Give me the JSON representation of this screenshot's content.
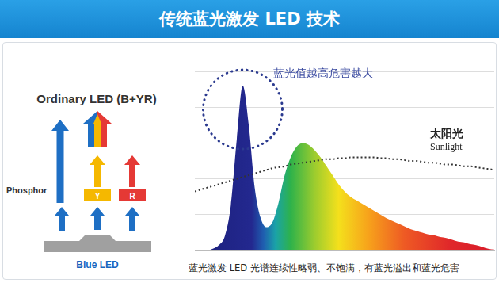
{
  "header": {
    "title": "传统蓝光激发 LED 技术"
  },
  "diagram": {
    "title": "Ordinary LED (B+YR)",
    "phosphor_label": "Phosphor",
    "phosphor_boxes": [
      "Y",
      "R"
    ],
    "source_label": "Blue LED"
  },
  "chart_data": {
    "type": "line",
    "x": [
      0,
      2,
      4,
      6,
      8,
      10,
      12,
      14,
      16,
      18,
      20,
      22,
      24,
      26,
      28,
      30,
      32,
      34,
      36,
      38,
      40,
      42,
      44,
      46,
      48,
      50,
      52,
      54,
      56,
      58,
      60,
      62,
      64,
      66,
      68,
      70,
      72,
      74,
      76,
      78,
      80,
      82,
      84,
      86,
      88,
      90,
      92,
      94,
      96,
      98,
      100
    ],
    "series": [
      {
        "type": "area",
        "color": "spectrum",
        "marker": "none",
        "values": [
          0,
          0,
          0,
          1,
          3,
          8,
          25,
          62,
          92,
          70,
          35,
          18,
          13,
          16,
          27,
          42,
          52,
          58,
          60,
          59,
          56,
          52,
          47,
          42,
          37,
          33,
          30,
          28,
          26,
          24,
          22,
          20,
          18,
          16.5,
          15,
          13.5,
          12,
          11,
          10,
          9,
          8.5,
          7.5,
          7,
          6,
          5,
          4.5,
          3.5,
          3,
          2,
          1,
          0.5
        ]
      },
      {
        "type": "line",
        "color": "#333333",
        "line_style": "dotted",
        "marker": "none",
        "values": [
          33,
          34,
          35,
          36,
          37,
          38,
          39,
          40,
          41,
          42,
          43,
          44,
          45,
          46,
          46.5,
          47,
          48,
          48.5,
          49,
          49.5,
          50,
          50.5,
          51,
          51,
          51.5,
          51.5,
          52,
          52,
          52,
          52,
          52,
          51.5,
          51.5,
          51,
          51,
          50.5,
          50,
          50,
          49.5,
          49,
          49,
          48.5,
          48,
          48,
          47.5,
          47,
          47,
          46.5,
          46,
          45.5,
          45
        ]
      }
    ],
    "xlim": [
      0,
      100
    ],
    "xticks": [],
    "ylim": [
      0,
      100
    ],
    "yticks": [
      0,
      20,
      40,
      60,
      80,
      100
    ],
    "grid": "y",
    "tick_labels": false,
    "annotations": [
      {
        "text": "蓝光值越高危害越大"
      },
      {
        "text": "太阳光"
      },
      {
        "text": "Sunlight"
      }
    ],
    "caption": "蓝光激发 LED 光谱连续性略弱、不饱满，有蓝光溢出和蓝光危害"
  }
}
